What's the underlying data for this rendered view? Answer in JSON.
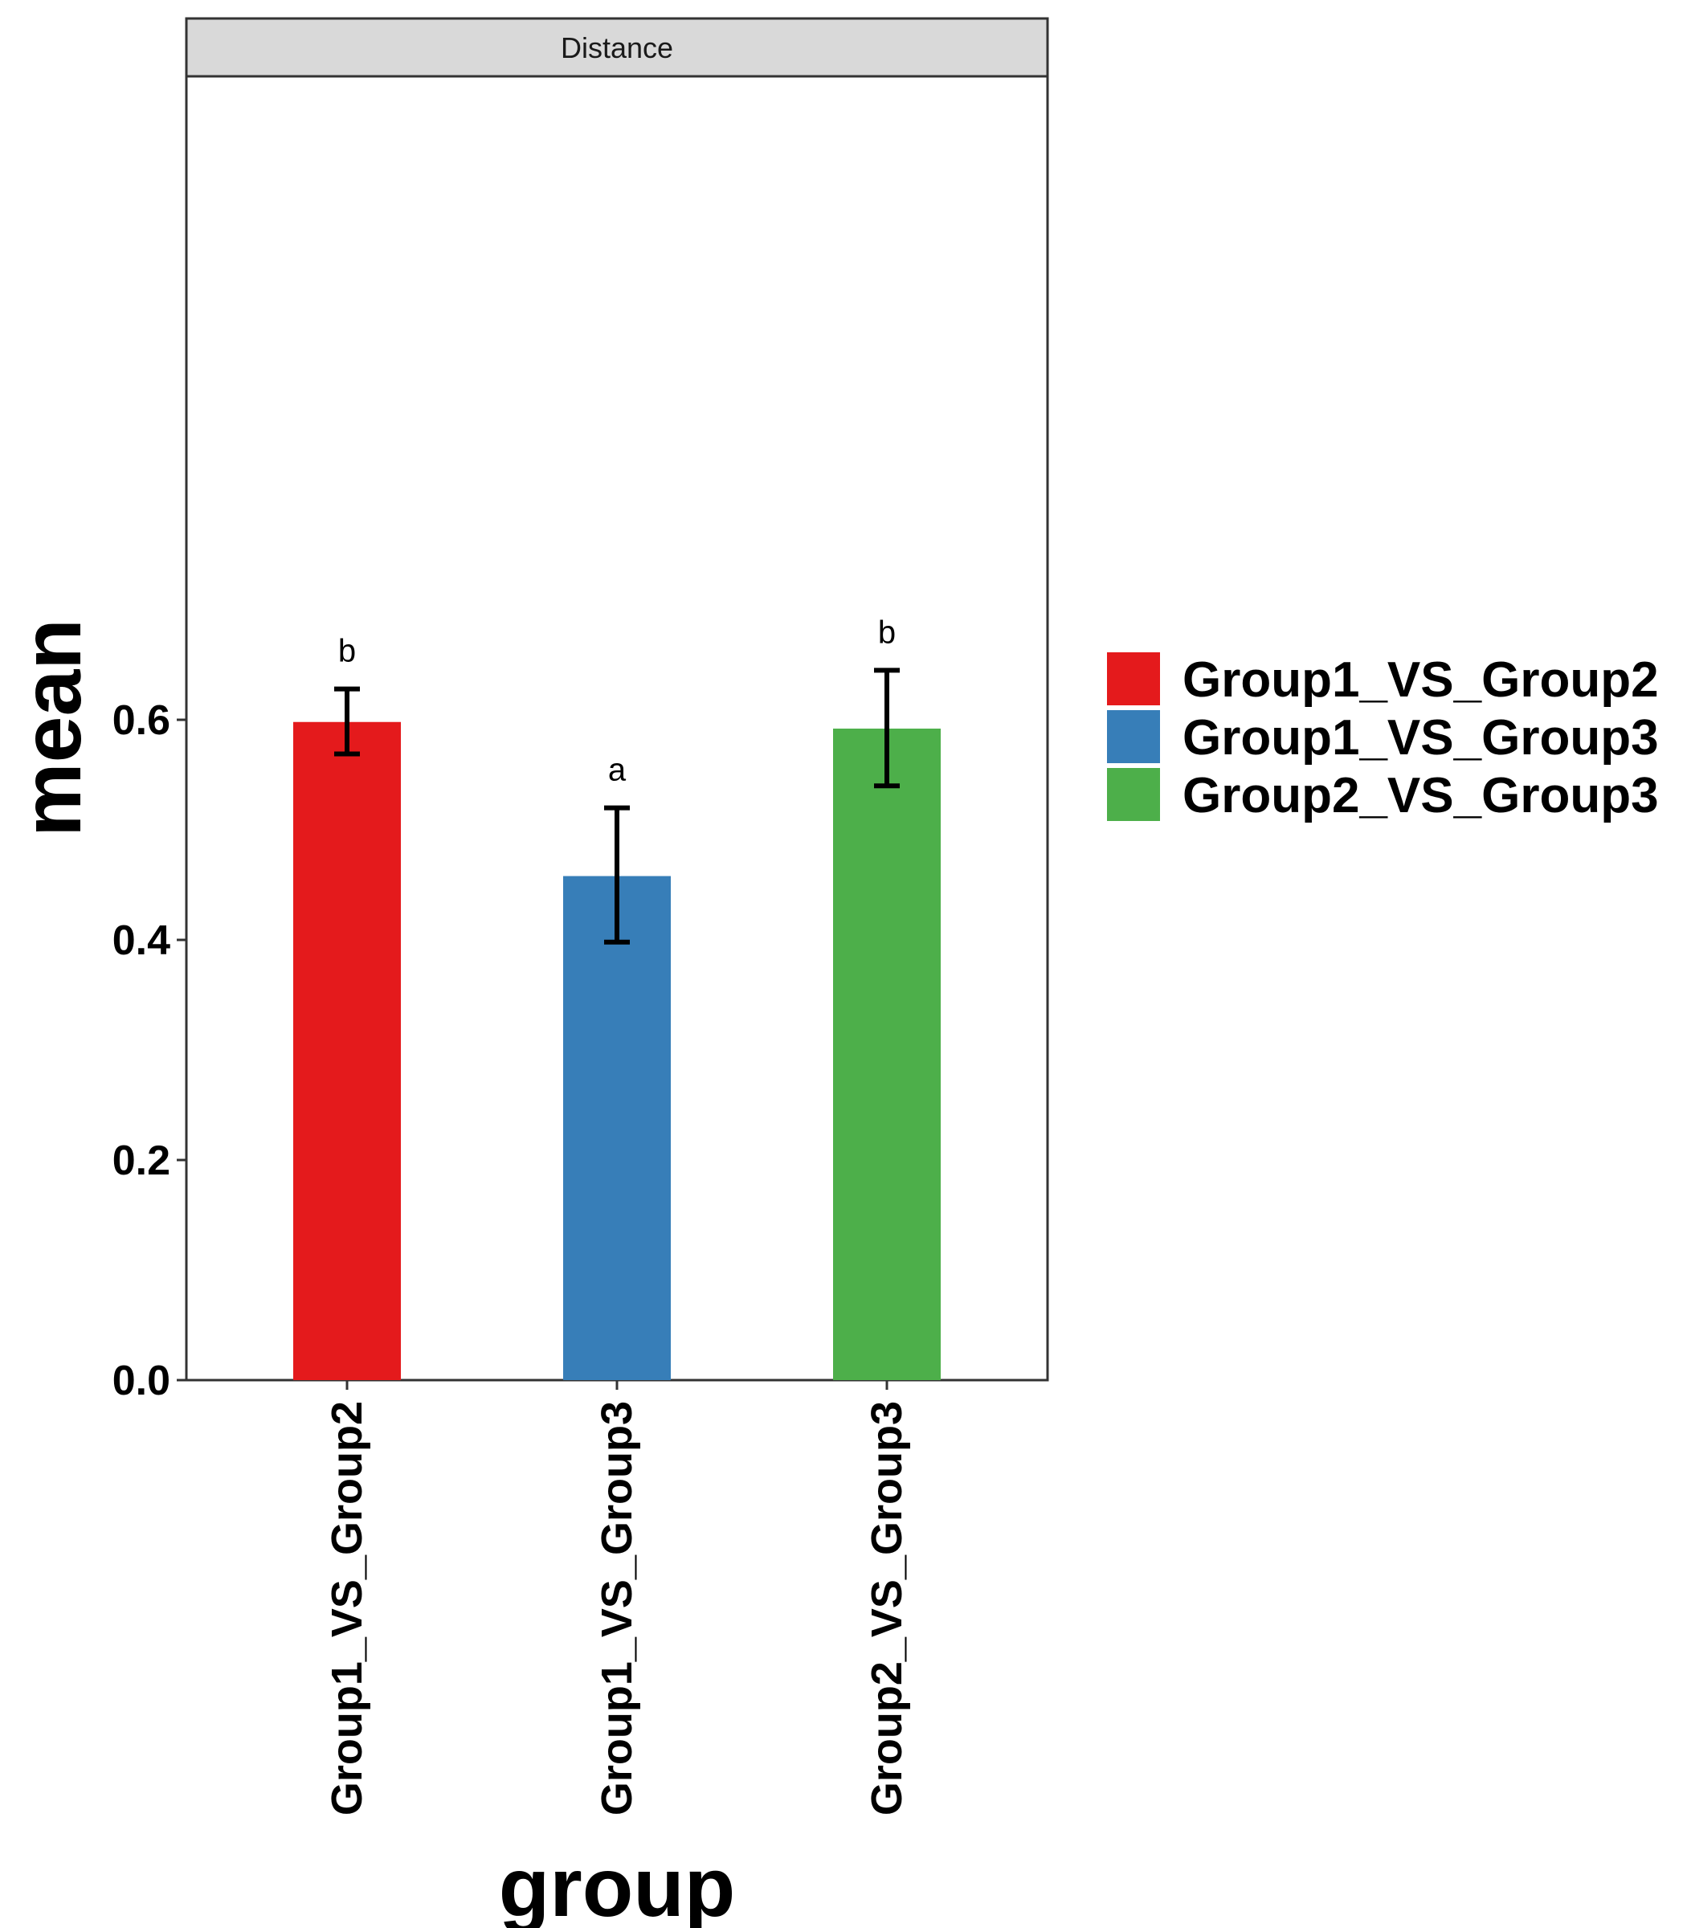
{
  "chart_data": {
    "type": "bar",
    "facet_label": "Distance",
    "categories": [
      "Group1_VS_Group2",
      "Group1_VS_Group3",
      "Group2_VS_Group3"
    ],
    "values": [
      0.598,
      0.458,
      0.592
    ],
    "error_low": [
      0.569,
      0.398,
      0.54
    ],
    "error_high": [
      0.628,
      0.52,
      0.645
    ],
    "significance_labels": [
      "b",
      "a",
      "b"
    ],
    "colors": [
      "#E41A1C",
      "#377EB8",
      "#4DAF4A"
    ],
    "xlabel": "group",
    "ylabel": "mean",
    "ylim": [
      0,
      0.7
    ],
    "y_ticks": [
      0.0,
      0.2,
      0.4,
      0.6
    ],
    "y_tick_labels": [
      "0.0",
      "0.2",
      "0.4",
      "0.6"
    ],
    "x_tick_rotation": "vertical",
    "legend": {
      "position": "right",
      "entries": [
        "Group1_VS_Group2",
        "Group1_VS_Group3",
        "Group2_VS_Group3"
      ]
    },
    "grid": false,
    "panel_border": true
  }
}
